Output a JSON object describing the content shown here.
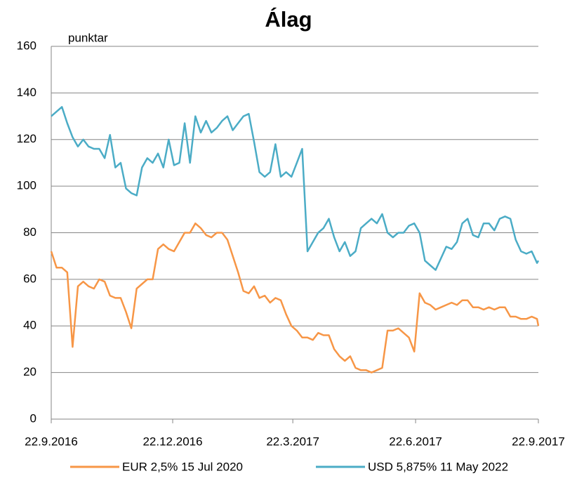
{
  "chart_data": {
    "type": "line",
    "title": "Álag",
    "y_unit_label": "punktar",
    "x": [
      "22.9.2016",
      "26.9.2016",
      "30.9.2016",
      "4.10.2016",
      "8.10.2016",
      "12.10.2016",
      "16.10.2016",
      "20.10.2016",
      "24.10.2016",
      "28.10.2016",
      "1.11.2016",
      "5.11.2016",
      "9.11.2016",
      "13.11.2016",
      "17.11.2016",
      "21.11.2016",
      "25.11.2016",
      "29.11.2016",
      "3.12.2016",
      "7.12.2016",
      "11.12.2016",
      "15.12.2016",
      "19.12.2016",
      "23.12.2016",
      "27.12.2016",
      "31.12.2016",
      "4.1.2017",
      "8.1.2017",
      "12.1.2017",
      "16.1.2017",
      "20.1.2017",
      "24.1.2017",
      "28.1.2017",
      "1.2.2017",
      "5.2.2017",
      "9.2.2017",
      "13.2.2017",
      "17.2.2017",
      "21.2.2017",
      "25.2.2017",
      "1.3.2017",
      "5.3.2017",
      "9.3.2017",
      "13.3.2017",
      "17.3.2017",
      "21.3.2017",
      "25.3.2017",
      "29.3.2017",
      "2.4.2017",
      "6.4.2017",
      "10.4.2017",
      "14.4.2017",
      "18.4.2017",
      "22.4.2017",
      "26.4.2017",
      "30.4.2017",
      "4.5.2017",
      "8.5.2017",
      "12.5.2017",
      "16.5.2017",
      "20.5.2017",
      "24.5.2017",
      "28.5.2017",
      "1.6.2017",
      "5.6.2017",
      "9.6.2017",
      "13.6.2017",
      "17.6.2017",
      "21.6.2017",
      "25.6.2017",
      "29.6.2017",
      "3.7.2017",
      "7.7.2017",
      "11.7.2017",
      "15.7.2017",
      "19.7.2017",
      "23.7.2017",
      "27.7.2017",
      "31.7.2017",
      "4.8.2017",
      "8.8.2017",
      "12.8.2017",
      "16.8.2017",
      "20.8.2017",
      "24.8.2017",
      "28.8.2017",
      "1.9.2017",
      "5.9.2017",
      "9.9.2017",
      "13.9.2017",
      "17.9.2017",
      "21.9.2017",
      "22.9.2017"
    ],
    "series": [
      {
        "name": "EUR 2,5% 15 Jul 2020",
        "color": "#f79646",
        "values": [
          72,
          65,
          65,
          63,
          31,
          57,
          59,
          57,
          56,
          60,
          59,
          53,
          52,
          52,
          46,
          39,
          56,
          58,
          60,
          60,
          73,
          75,
          73,
          72,
          76,
          80,
          80,
          84,
          82,
          79,
          78,
          80,
          80,
          77,
          70,
          63,
          55,
          54,
          57,
          52,
          53,
          50,
          52,
          51,
          45,
          40,
          38,
          35,
          35,
          34,
          37,
          36,
          36,
          30,
          27,
          25,
          27,
          22,
          21,
          21,
          20,
          21,
          22,
          38,
          38,
          39,
          37,
          35,
          29,
          54,
          50,
          49,
          47,
          48,
          49,
          50,
          49,
          51,
          51,
          48,
          48,
          47,
          48,
          47,
          48,
          48,
          44,
          44,
          43,
          43,
          44,
          43,
          40
        ]
      },
      {
        "name": "USD 5,875% 11 May 2022",
        "color": "#4bacc6",
        "values": [
          130,
          132,
          134,
          127,
          121,
          117,
          120,
          117,
          116,
          116,
          112,
          122,
          108,
          110,
          99,
          97,
          96,
          108,
          112,
          110,
          114,
          108,
          120,
          109,
          110,
          127,
          110,
          130,
          123,
          128,
          123,
          125,
          128,
          130,
          124,
          127,
          130,
          131,
          119,
          106,
          104,
          106,
          118,
          104,
          106,
          104,
          110,
          116,
          72,
          76,
          80,
          82,
          86,
          78,
          72,
          76,
          70,
          72,
          82,
          84,
          86,
          84,
          88,
          80,
          78,
          80,
          80,
          83,
          84,
          80,
          68,
          66,
          64,
          69,
          74,
          73,
          76,
          84,
          86,
          79,
          78,
          84,
          84,
          81,
          86,
          87,
          86,
          77,
          72,
          71,
          72,
          67,
          68
        ]
      }
    ],
    "xlim": [
      "22.9.2016",
      "22.9.2017"
    ],
    "xticks": [
      "22.9.2016",
      "22.12.2016",
      "22.3.2017",
      "22.6.2017",
      "22.9.2017"
    ],
    "ylim": [
      0,
      160
    ],
    "yticks": [
      0,
      20,
      40,
      60,
      80,
      100,
      120,
      140,
      160
    ],
    "grid": true
  }
}
